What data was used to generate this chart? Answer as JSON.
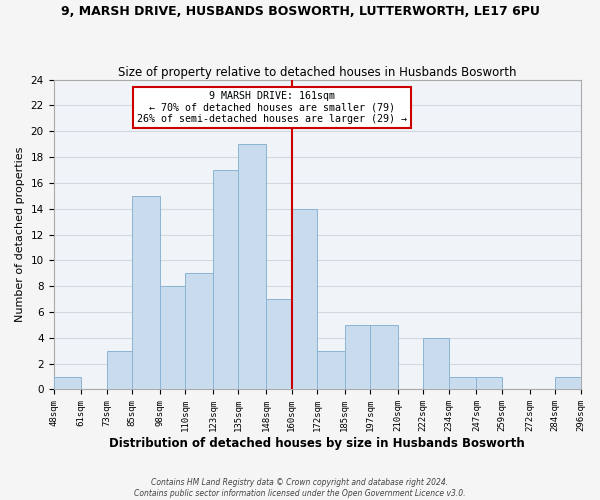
{
  "title": "9, MARSH DRIVE, HUSBANDS BOSWORTH, LUTTERWORTH, LE17 6PU",
  "subtitle": "Size of property relative to detached houses in Husbands Bosworth",
  "xlabel": "Distribution of detached houses by size in Husbands Bosworth",
  "ylabel": "Number of detached properties",
  "bin_edges": [
    48,
    61,
    73,
    85,
    98,
    110,
    123,
    135,
    148,
    160,
    172,
    185,
    197,
    210,
    222,
    234,
    247,
    259,
    272,
    284,
    296
  ],
  "bin_labels": [
    "48sqm",
    "61sqm",
    "73sqm",
    "85sqm",
    "98sqm",
    "110sqm",
    "123sqm",
    "135sqm",
    "148sqm",
    "160sqm",
    "172sqm",
    "185sqm",
    "197sqm",
    "210sqm",
    "222sqm",
    "234sqm",
    "247sqm",
    "259sqm",
    "272sqm",
    "284sqm",
    "296sqm"
  ],
  "counts": [
    1,
    0,
    3,
    15,
    8,
    9,
    17,
    19,
    7,
    14,
    3,
    5,
    5,
    0,
    4,
    1,
    1,
    0,
    0,
    1
  ],
  "bar_color": "#c8dced",
  "bar_edge_color": "#8ab4d4",
  "vline_x": 160,
  "vline_color": "#cc0000",
  "annotation_line1": "9 MARSH DRIVE: 161sqm",
  "annotation_line2": "← 70% of detached houses are smaller (79)",
  "annotation_line3": "26% of semi-detached houses are larger (29) →",
  "annotation_box_color": "#ffffff",
  "annotation_box_edge": "#cc0000",
  "ylim": [
    0,
    24
  ],
  "yticks": [
    0,
    2,
    4,
    6,
    8,
    10,
    12,
    14,
    16,
    18,
    20,
    22,
    24
  ],
  "footer_line1": "Contains HM Land Registry data © Crown copyright and database right 2024.",
  "footer_line2": "Contains public sector information licensed under the Open Government Licence v3.0.",
  "bg_color": "#f5f5f5",
  "plot_bg_color": "#f0f4f8",
  "grid_color": "#d0d8e0"
}
